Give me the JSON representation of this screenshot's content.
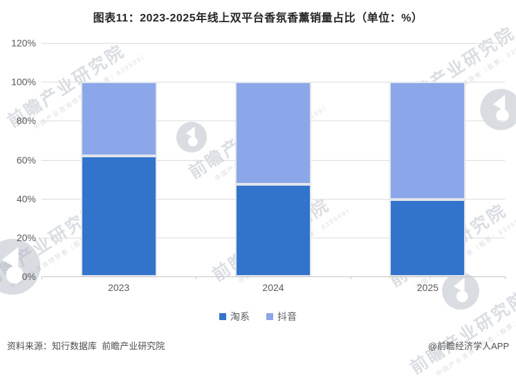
{
  "title": "图表11：2023-2025年线上双平台香氛香薰销量占比（单位：%）",
  "chart_data": {
    "type": "bar",
    "stacked": true,
    "title": "图表11：2023-2025年线上双平台香氛香薰销量占比（单位：%）",
    "unit": "%",
    "categories": [
      "2023",
      "2024",
      "2025"
    ],
    "series": [
      {
        "name": "淘系",
        "color": "#3273CB",
        "values": [
          62,
          47.5,
          39.5
        ]
      },
      {
        "name": "抖音",
        "color": "#8BA7E9",
        "values": [
          38,
          52.5,
          60.5
        ]
      }
    ],
    "ylim": [
      0,
      120
    ],
    "yticks": [
      "0%",
      "20%",
      "40%",
      "60%",
      "80%",
      "100%",
      "120%"
    ],
    "grid": true,
    "legend_position": "bottom"
  },
  "footer": {
    "source": "资料来源：知行数据库  前瞻产业研究院",
    "credit": "@前瞻经济学人APP"
  },
  "watermark": {
    "text": "前瞻产业研究院",
    "subtext": "中国产业咨询领导者（股票：839599）"
  },
  "colors": {
    "taoxi": "#3273CB",
    "douyin": "#8BA7E9",
    "grid": "#DCDCDC",
    "axis": "#C6C6C6",
    "tick_text": "#595959",
    "title_text": "#262626",
    "footer_text": "#4D4D4D",
    "watermark": "#BCC2CC"
  }
}
